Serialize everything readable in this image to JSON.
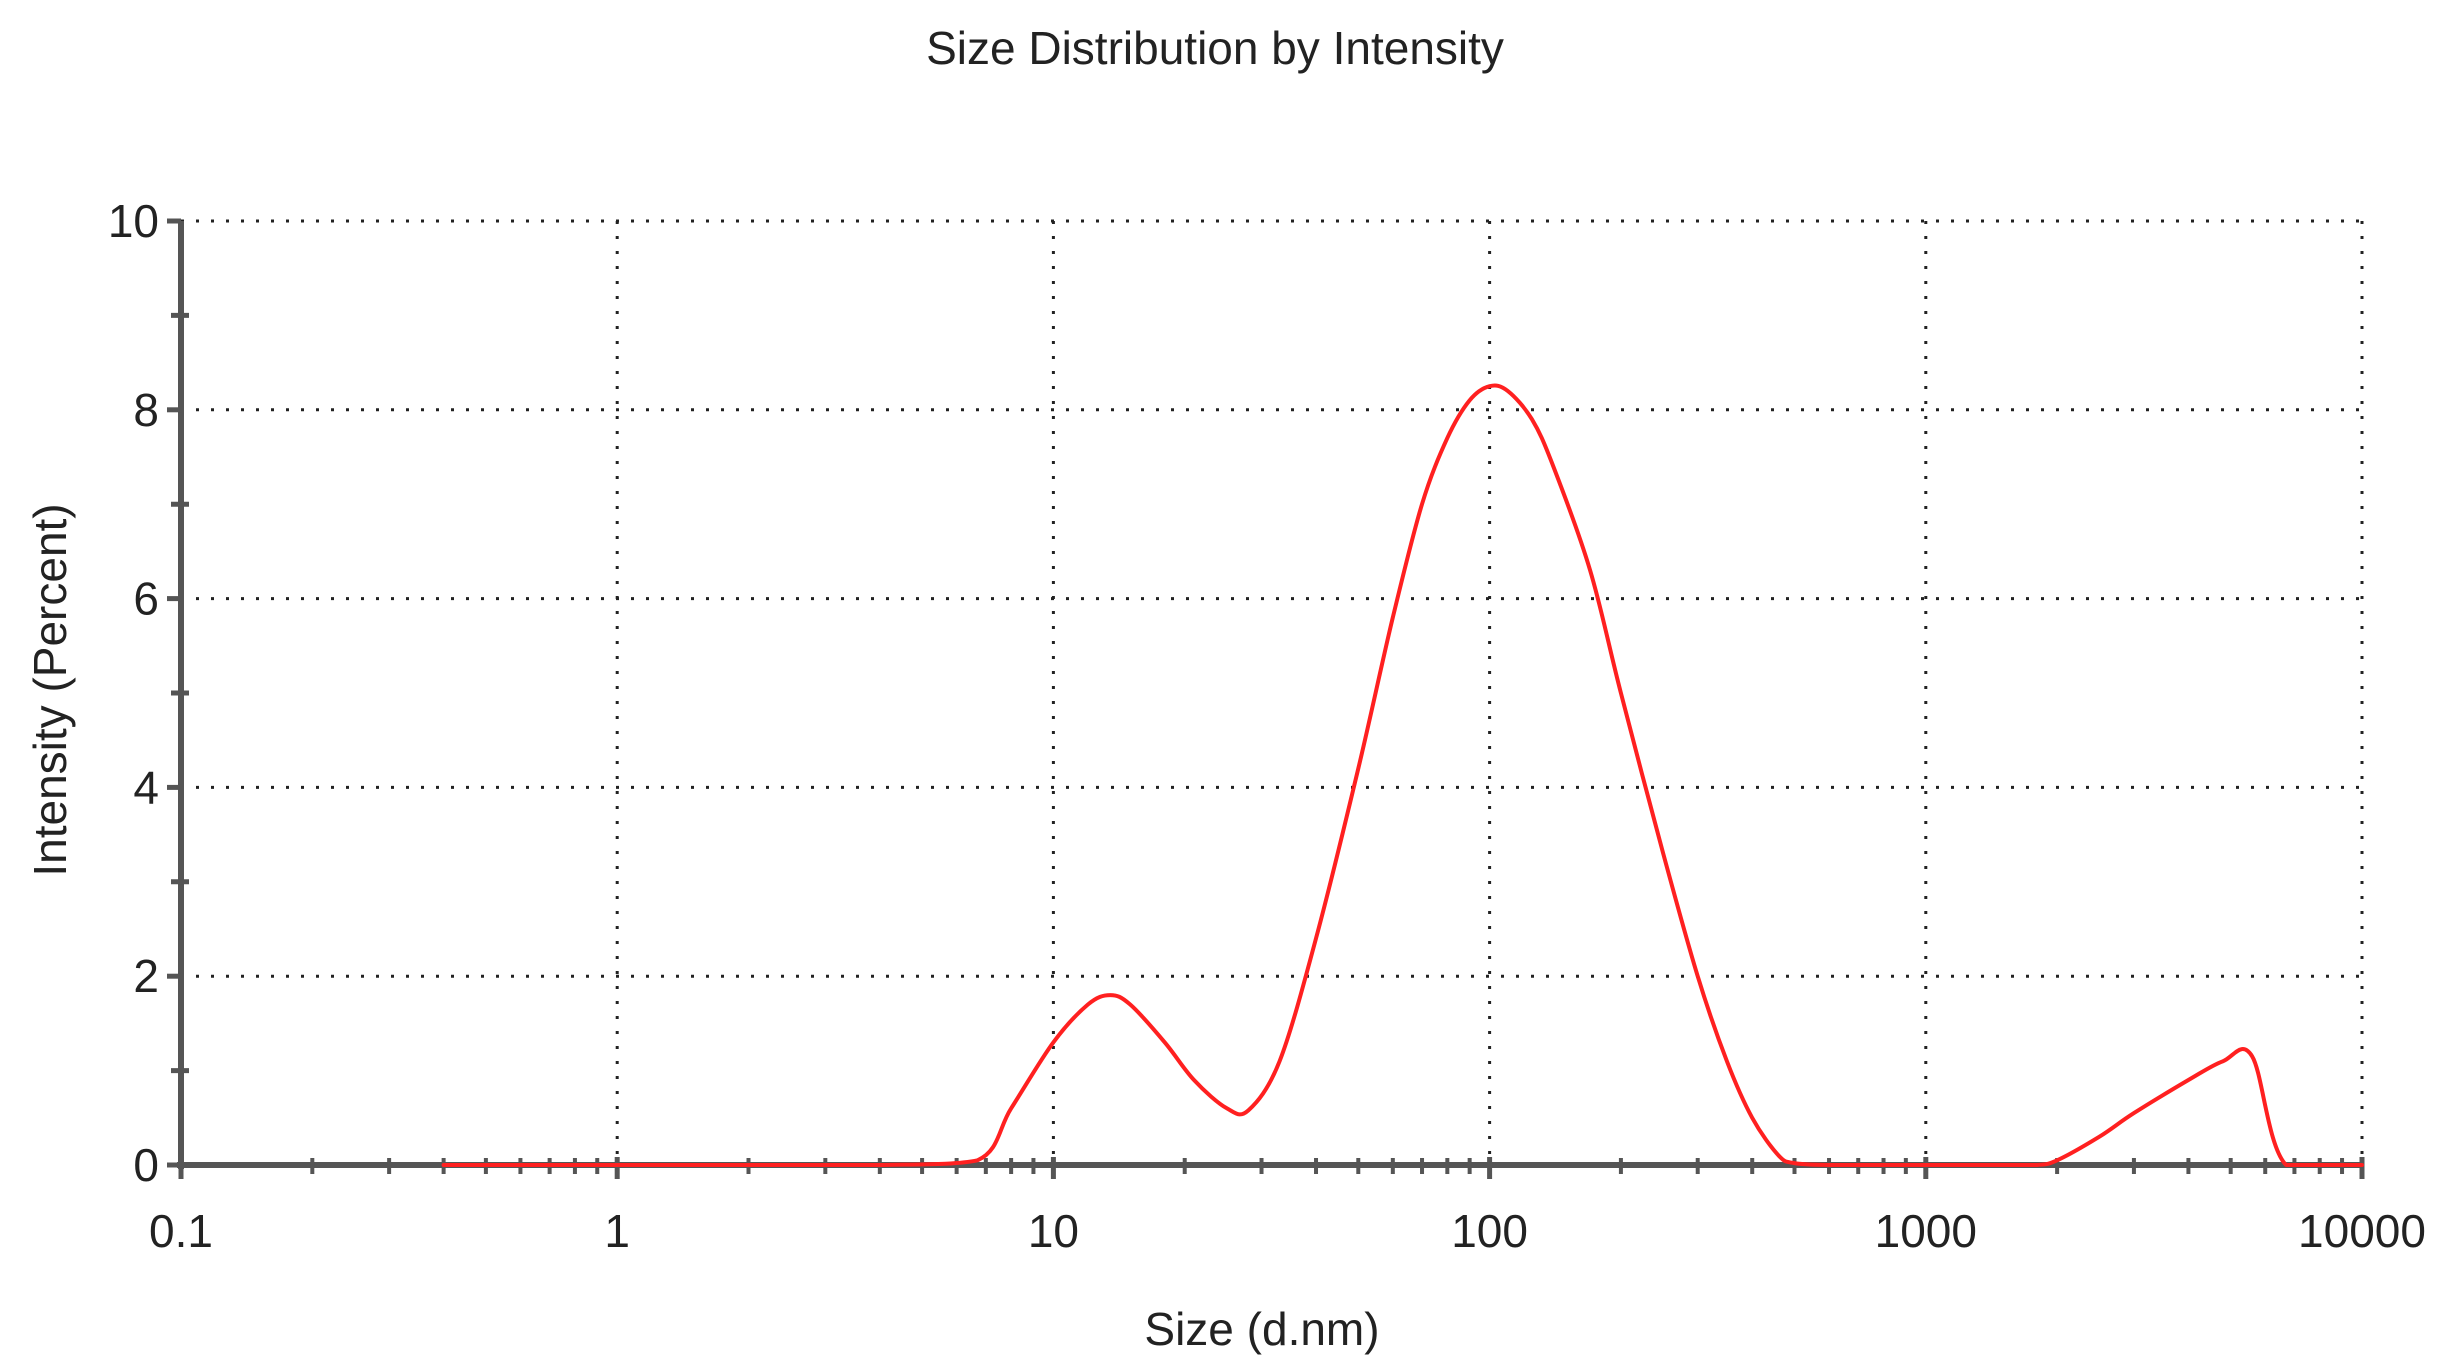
{
  "chart_data": {
    "type": "line",
    "title": "Size Distribution by Intensity",
    "xlabel": "Size (d.nm)",
    "ylabel": "Intensity (Percent)",
    "x_scale": "log",
    "xlim": [
      0.1,
      10000
    ],
    "ylim": [
      0,
      10
    ],
    "x_ticks": [
      0.1,
      1,
      10,
      100,
      1000,
      10000
    ],
    "x_tick_labels": [
      "0.1",
      "1",
      "10",
      "100",
      "1000",
      "10000"
    ],
    "y_ticks": [
      0,
      2,
      4,
      6,
      8,
      10
    ],
    "y_tick_labels": [
      "0",
      "2",
      "4",
      "6",
      "8",
      "10"
    ],
    "grid": true,
    "grid_style": "dotted",
    "line_color": "#ff2020",
    "axis_color": "#555555",
    "series": [
      {
        "x": [
          0.4,
          1,
          2,
          4,
          6.7,
          8,
          10,
          12,
          13.5,
          15,
          18,
          21,
          25,
          28,
          33,
          40,
          50,
          60,
          70,
          80,
          90,
          100,
          110,
          125,
          140,
          170,
          200,
          250,
          300,
          350,
          400,
          460,
          500,
          600,
          800,
          1000,
          1200,
          1500,
          1800,
          2000,
          2500,
          3000,
          4000,
          4800,
          5600,
          6700,
          10000
        ],
        "y": [
          0,
          0,
          0,
          0,
          0.05,
          0.6,
          1.3,
          1.7,
          1.8,
          1.7,
          1.3,
          0.9,
          0.6,
          0.58,
          1.1,
          2.4,
          4.2,
          5.8,
          7.0,
          7.7,
          8.1,
          8.25,
          8.2,
          7.9,
          7.4,
          6.3,
          5.0,
          3.3,
          2.0,
          1.1,
          0.5,
          0.1,
          0.02,
          0,
          0,
          0,
          0,
          0,
          0,
          0.05,
          0.3,
          0.55,
          0.9,
          1.1,
          1.15,
          0,
          0
        ]
      }
    ]
  }
}
